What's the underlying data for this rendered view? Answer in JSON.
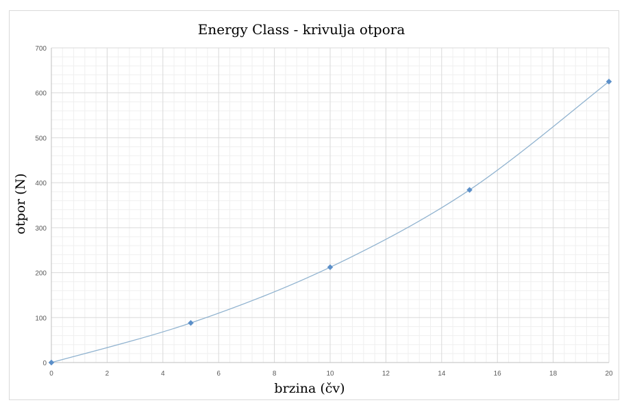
{
  "chart_data": {
    "type": "scatter",
    "title": "Energy Class - krivulja otpora",
    "xlabel": "brzina (čv)",
    "ylabel": "otpor (N)",
    "xlim": [
      0,
      20
    ],
    "ylim": [
      0,
      700
    ],
    "x_ticks": [
      0,
      2,
      4,
      6,
      8,
      10,
      12,
      14,
      16,
      18,
      20
    ],
    "y_ticks": [
      0,
      100,
      200,
      300,
      400,
      500,
      600,
      700
    ],
    "grid": true,
    "minor_grid": true,
    "legend": "none",
    "series": [
      {
        "x": [
          0,
          5,
          10,
          15,
          20
        ],
        "y": [
          0,
          88,
          212,
          384,
          625
        ],
        "marker": "diamond",
        "trendline": "smooth",
        "color": "#5b8fc9",
        "line_color": "#8fb2cf"
      }
    ]
  }
}
